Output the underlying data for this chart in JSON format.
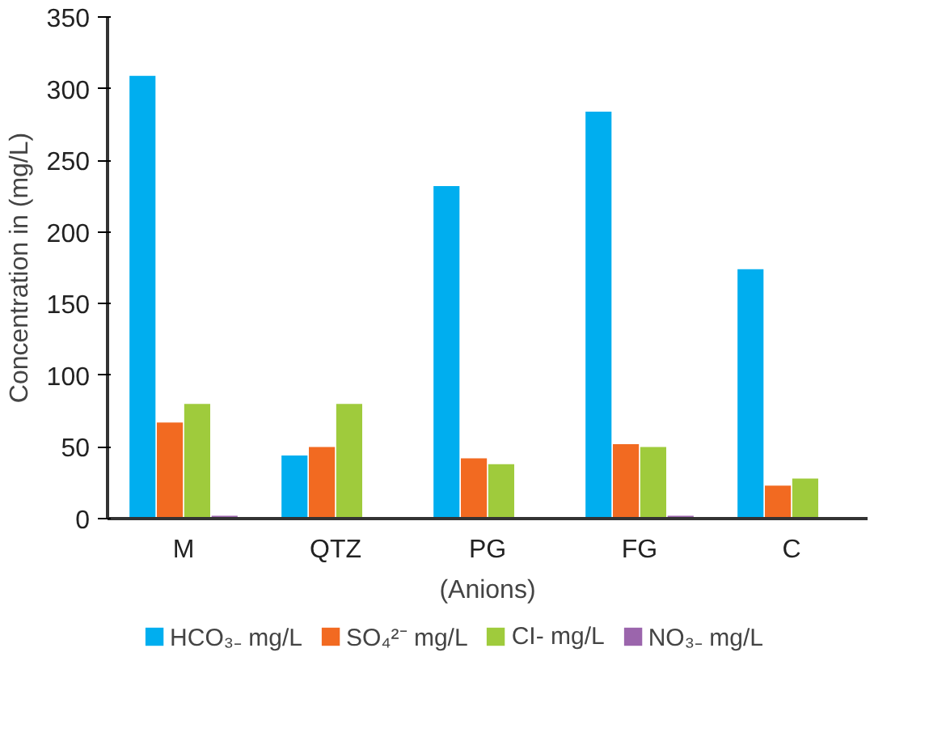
{
  "chart_data": {
    "type": "bar",
    "xlabel": "(Anions)",
    "ylabel": "Concentration in (mg/L)",
    "categories": [
      "M",
      "QTZ",
      "PG",
      "FG",
      "C"
    ],
    "series": [
      {
        "name": "HCO₃₋ mg/L",
        "color": "#00aeef",
        "values": [
          309,
          44,
          232,
          284,
          174
        ]
      },
      {
        "name": "SO₄²⁻ mg/L",
        "color": "#f26a21",
        "values": [
          67,
          50,
          42,
          52,
          23
        ]
      },
      {
        "name": "CI- mg/L",
        "color": "#9fcb3c",
        "values": [
          80,
          80,
          38,
          50,
          28
        ]
      },
      {
        "name": "NO₃₋ mg/L",
        "color": "#9b65ac",
        "values": [
          2,
          null,
          null,
          2,
          null
        ]
      }
    ],
    "ylim": [
      0,
      350
    ],
    "yticks": [
      0,
      50,
      100,
      150,
      200,
      250,
      300,
      350
    ],
    "grid": false,
    "legend": "bottom"
  }
}
